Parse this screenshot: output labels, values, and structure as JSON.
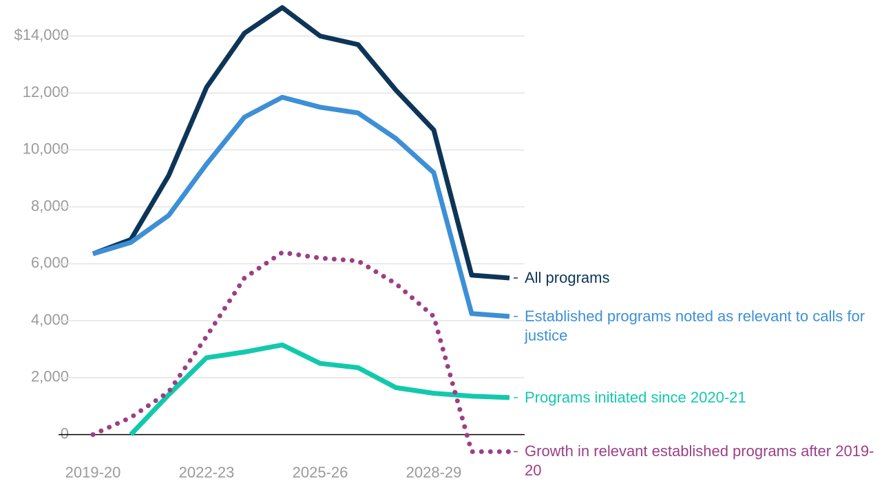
{
  "chart_data": {
    "type": "line",
    "categories": [
      "2019-20",
      null,
      null,
      "2022-23",
      null,
      null,
      "2025-26",
      null,
      null,
      "2028-29",
      null,
      null
    ],
    "series": [
      {
        "name": "All programs",
        "color": "#0d3558",
        "values": [
          6350,
          6850,
          9100,
          12200,
          14100,
          15000,
          14000,
          13700,
          12100,
          10700,
          5600,
          5500
        ]
      },
      {
        "name": "Established programs noted as relevant to calls for justice",
        "color": "#3d8fd6",
        "values": [
          6350,
          6750,
          7700,
          9500,
          11150,
          11850,
          11500,
          11300,
          10400,
          9200,
          4250,
          4150
        ]
      },
      {
        "name": "Programs initiated since 2020-21",
        "color": "#12c9ad",
        "values": [
          null,
          0,
          1400,
          2700,
          2900,
          3150,
          2500,
          2350,
          1650,
          1450,
          1350,
          1300
        ]
      },
      {
        "name": "Growth in relevant established programs after 2019-20",
        "color": "#9b3f86",
        "style": "dotted",
        "values": [
          0,
          600,
          1500,
          3450,
          5500,
          6400,
          6200,
          6100,
          5300,
          4150,
          -600,
          -600
        ]
      }
    ],
    "ylim": [
      -1000,
      15000
    ],
    "yticks": [
      0,
      {
        "value": 2000,
        "label": "2,000"
      },
      {
        "value": 4000,
        "label": "4,000"
      },
      {
        "value": 6000,
        "label": "6,000"
      },
      {
        "value": 8000,
        "label": "8,000"
      },
      {
        "value": 10000,
        "label": "10,000"
      },
      {
        "value": 12000,
        "label": "12,000"
      },
      {
        "value": 14000,
        "label": "$14,000"
      }
    ],
    "grid": true
  }
}
